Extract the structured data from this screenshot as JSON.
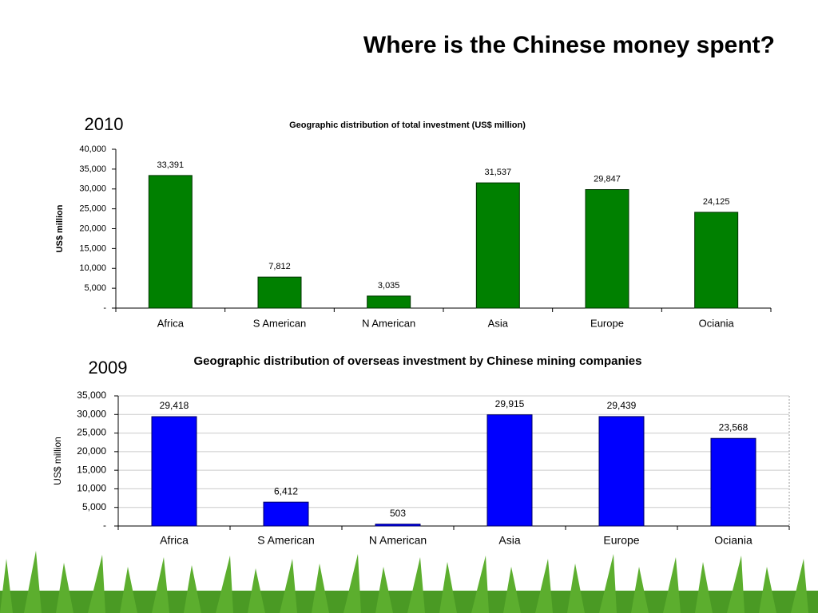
{
  "title": "Where is the Chinese money spent?",
  "chart_data": [
    {
      "type": "bar",
      "year": "2010",
      "title": "Geographic distribution of total investment (US$ million)",
      "ylabel": "US$ million",
      "categories": [
        "Africa",
        "S American",
        "N American",
        "Asia",
        "Europe",
        "Ociania"
      ],
      "values": [
        33391,
        7812,
        3035,
        31537,
        29847,
        24125
      ],
      "value_labels": [
        "33,391",
        "7,812",
        "3,035",
        "31,537",
        "29,847",
        "24,125"
      ],
      "color": "#008000",
      "grid": false,
      "ylim": [
        0,
        40000
      ],
      "yticks": [
        {
          "value": 0,
          "label": "-"
        },
        {
          "value": 5000,
          "label": "5,000"
        },
        {
          "value": 10000,
          "label": "10,000"
        },
        {
          "value": 15000,
          "label": "15,000"
        },
        {
          "value": 20000,
          "label": "20,000"
        },
        {
          "value": 25000,
          "label": "25,000"
        },
        {
          "value": 30000,
          "label": "30,000"
        },
        {
          "value": 35000,
          "label": "35,000"
        },
        {
          "value": 40000,
          "label": "40,000"
        }
      ]
    },
    {
      "type": "bar",
      "year": "2009",
      "title": "Geographic distribution of overseas investment by Chinese mining companies",
      "ylabel": "US$ million",
      "categories": [
        "Africa",
        "S American",
        "N American",
        "Asia",
        "Europe",
        "Ociania"
      ],
      "values": [
        29418,
        6412,
        503,
        29915,
        29439,
        23568
      ],
      "value_labels": [
        "29,418",
        "6,412",
        "503",
        "29,915",
        "29,439",
        "23,568"
      ],
      "color": "#0000ff",
      "grid": true,
      "ylim": [
        0,
        35000
      ],
      "yticks": [
        {
          "value": 0,
          "label": "-"
        },
        {
          "value": 5000,
          "label": "5,000"
        },
        {
          "value": 10000,
          "label": "10,000"
        },
        {
          "value": 15000,
          "label": "15,000"
        },
        {
          "value": 20000,
          "label": "20,000"
        },
        {
          "value": 25000,
          "label": "25,000"
        },
        {
          "value": 30000,
          "label": "30,000"
        },
        {
          "value": 35000,
          "label": "35,000"
        }
      ]
    }
  ]
}
